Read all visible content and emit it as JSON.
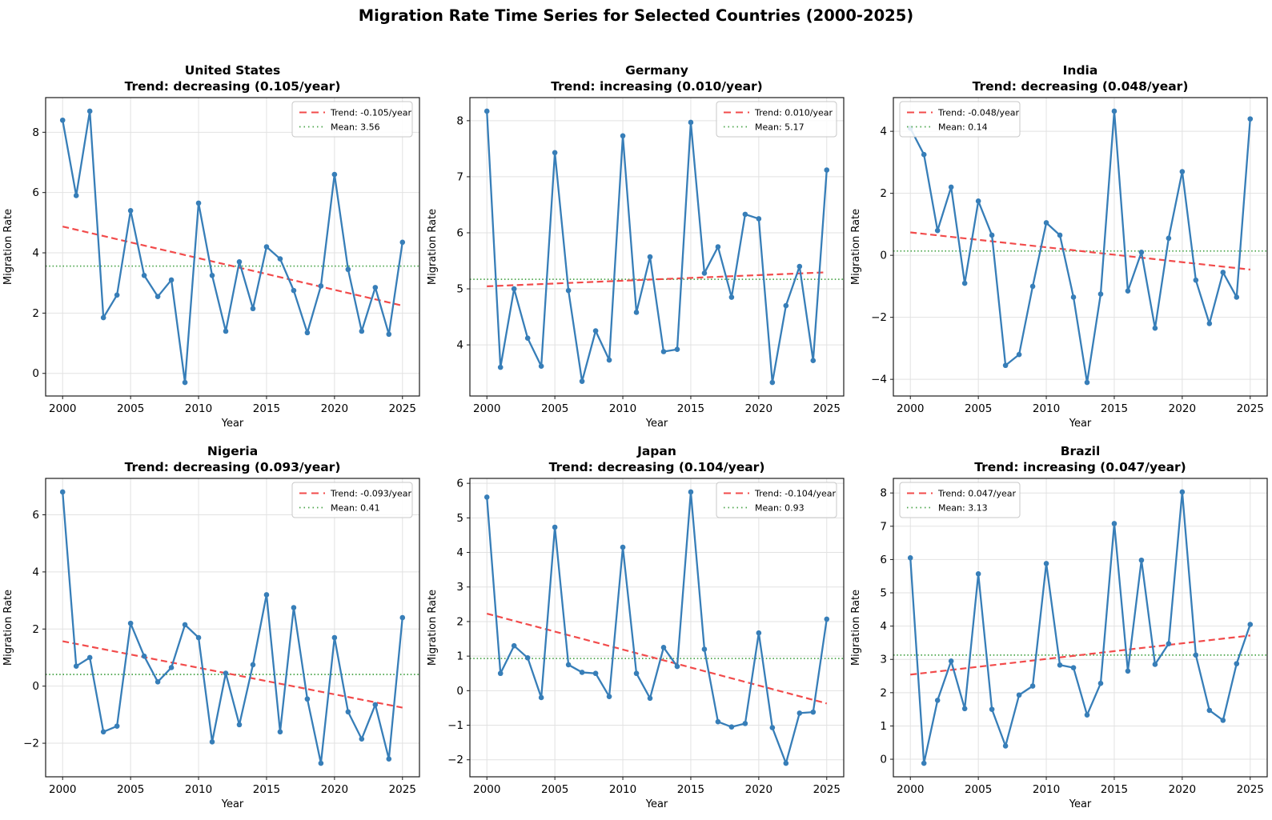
{
  "figure_title": "Migration Rate Time Series for Selected Countries (2000-2025)",
  "colors": {
    "series": "#377eb8",
    "trend": "#f24b4b",
    "mean": "#4da64d",
    "grid": "#e2e2e2",
    "spine": "#1a1a1a",
    "legend_border": "#c8c8c8"
  },
  "chart_data": [
    {
      "type": "line",
      "title": "United States",
      "subtitle": "Trend: decreasing (0.105/year)",
      "xlabel": "Year",
      "ylabel": "Migration Rate",
      "x": [
        2000,
        2001,
        2002,
        2003,
        2004,
        2005,
        2006,
        2007,
        2008,
        2009,
        2010,
        2011,
        2012,
        2013,
        2014,
        2015,
        2016,
        2017,
        2018,
        2019,
        2020,
        2021,
        2022,
        2023,
        2024,
        2025
      ],
      "y": [
        8.4,
        5.9,
        8.7,
        1.85,
        2.6,
        5.4,
        3.25,
        2.55,
        3.1,
        -0.3,
        5.65,
        3.25,
        1.4,
        3.7,
        2.15,
        4.2,
        3.8,
        2.75,
        1.35,
        2.9,
        6.6,
        3.45,
        1.4,
        2.85,
        1.3,
        4.35
      ],
      "mean": 3.56,
      "trend_slope_per_year": -0.105,
      "legend": {
        "trend_label": "Trend: -0.105/year",
        "mean_label": "Mean: 3.56",
        "position": "top-right"
      },
      "xlim": [
        1998.75,
        2026.25
      ],
      "ylim": [
        -0.75,
        9.15
      ],
      "xticks": [
        2000,
        2005,
        2010,
        2015,
        2020,
        2025
      ],
      "xtick_labels": [
        "2000",
        "2005",
        "2010",
        "2015",
        "2020",
        "2025"
      ],
      "yticks": [
        0,
        2,
        4,
        6,
        8
      ],
      "ytick_labels": [
        "0",
        "2",
        "4",
        "6",
        "8"
      ],
      "grid": true
    },
    {
      "type": "line",
      "title": "Germany",
      "subtitle": "Trend: increasing (0.010/year)",
      "xlabel": "Year",
      "ylabel": "Migration Rate",
      "x": [
        2000,
        2001,
        2002,
        2003,
        2004,
        2005,
        2006,
        2007,
        2008,
        2009,
        2010,
        2011,
        2012,
        2013,
        2014,
        2015,
        2016,
        2017,
        2018,
        2019,
        2020,
        2021,
        2022,
        2023,
        2024,
        2025
      ],
      "y": [
        8.17,
        3.6,
        5.0,
        4.12,
        3.62,
        7.43,
        4.97,
        3.35,
        4.25,
        3.73,
        7.73,
        4.58,
        5.57,
        3.88,
        3.92,
        7.97,
        5.28,
        5.75,
        4.85,
        6.33,
        6.25,
        3.33,
        4.7,
        5.4,
        3.72,
        7.12
      ],
      "mean": 5.17,
      "trend_slope_per_year": 0.01,
      "legend": {
        "trend_label": "Trend: 0.010/year",
        "mean_label": "Mean: 5.17",
        "position": "top-right"
      },
      "xlim": [
        1998.75,
        2026.25
      ],
      "ylim": [
        3.088,
        8.412
      ],
      "xticks": [
        2000,
        2005,
        2010,
        2015,
        2020,
        2025
      ],
      "xtick_labels": [
        "2000",
        "2005",
        "2010",
        "2015",
        "2020",
        "2025"
      ],
      "yticks": [
        4,
        5,
        6,
        7,
        8
      ],
      "ytick_labels": [
        "4",
        "5",
        "6",
        "7",
        "8"
      ],
      "grid": true
    },
    {
      "type": "line",
      "title": "India",
      "subtitle": "Trend: decreasing (0.048/year)",
      "xlabel": "Year",
      "ylabel": "Migration Rate",
      "x": [
        2000,
        2001,
        2002,
        2003,
        2004,
        2005,
        2006,
        2007,
        2008,
        2009,
        2010,
        2011,
        2012,
        2013,
        2014,
        2015,
        2016,
        2017,
        2018,
        2019,
        2020,
        2021,
        2022,
        2023,
        2024,
        2025
      ],
      "y": [
        4.1,
        3.25,
        0.8,
        2.2,
        -0.9,
        1.75,
        0.65,
        -3.55,
        -3.2,
        -1.0,
        1.05,
        0.65,
        -1.35,
        -4.1,
        -1.25,
        4.65,
        -1.15,
        0.1,
        -2.35,
        0.55,
        2.7,
        -0.8,
        -2.2,
        -0.55,
        -1.35,
        4.4
      ],
      "mean": 0.14,
      "trend_slope_per_year": -0.048,
      "legend": {
        "trend_label": "Trend: -0.048/year",
        "mean_label": "Mean: 0.14",
        "position": "top-left"
      },
      "xlim": [
        1998.75,
        2026.25
      ],
      "ylim": [
        -4.5375,
        5.0875
      ],
      "xticks": [
        2000,
        2005,
        2010,
        2015,
        2020,
        2025
      ],
      "xtick_labels": [
        "2000",
        "2005",
        "2010",
        "2015",
        "2020",
        "2025"
      ],
      "yticks": [
        -4,
        -2,
        0,
        2,
        4
      ],
      "ytick_labels": [
        "−4",
        "−2",
        "0",
        "2",
        "4"
      ],
      "grid": true
    },
    {
      "type": "line",
      "title": "Nigeria",
      "subtitle": "Trend: decreasing (0.093/year)",
      "xlabel": "Year",
      "ylabel": "Migration Rate",
      "x": [
        2000,
        2001,
        2002,
        2003,
        2004,
        2005,
        2006,
        2007,
        2008,
        2009,
        2010,
        2011,
        2012,
        2013,
        2014,
        2015,
        2016,
        2017,
        2018,
        2019,
        2020,
        2021,
        2022,
        2023,
        2024,
        2025
      ],
      "y": [
        6.8,
        0.7,
        1.0,
        -1.6,
        -1.4,
        2.2,
        1.05,
        0.15,
        0.65,
        2.15,
        1.7,
        -1.95,
        0.45,
        -1.35,
        0.75,
        3.2,
        -1.6,
        2.75,
        -0.45,
        -2.7,
        1.7,
        -0.9,
        -1.85,
        -0.65,
        -2.55,
        2.4
      ],
      "mean": 0.41,
      "trend_slope_per_year": -0.093,
      "legend": {
        "trend_label": "Trend: -0.093/year",
        "mean_label": "Mean: 0.41",
        "position": "top-right"
      },
      "xlim": [
        1998.75,
        2026.25
      ],
      "ylim": [
        -3.175,
        7.275
      ],
      "xticks": [
        2000,
        2005,
        2010,
        2015,
        2020,
        2025
      ],
      "xtick_labels": [
        "2000",
        "2005",
        "2010",
        "2015",
        "2020",
        "2025"
      ],
      "yticks": [
        -2,
        0,
        2,
        4,
        6
      ],
      "ytick_labels": [
        "−2",
        "0",
        "2",
        "4",
        "6"
      ],
      "grid": true
    },
    {
      "type": "line",
      "title": "Japan",
      "subtitle": "Trend: decreasing (0.104/year)",
      "xlabel": "Year",
      "ylabel": "Migration Rate",
      "x": [
        2000,
        2001,
        2002,
        2003,
        2004,
        2005,
        2006,
        2007,
        2008,
        2009,
        2010,
        2011,
        2012,
        2013,
        2014,
        2015,
        2016,
        2017,
        2018,
        2019,
        2020,
        2021,
        2022,
        2023,
        2024,
        2025
      ],
      "y": [
        5.6,
        0.5,
        1.3,
        0.95,
        -0.2,
        4.73,
        0.75,
        0.53,
        0.5,
        -0.17,
        4.15,
        0.5,
        -0.22,
        1.25,
        0.7,
        5.75,
        1.2,
        -0.9,
        -1.05,
        -0.95,
        1.67,
        -1.07,
        -2.1,
        -0.65,
        -0.62,
        2.07
      ],
      "mean": 0.93,
      "trend_slope_per_year": -0.104,
      "legend": {
        "trend_label": "Trend: -0.104/year",
        "mean_label": "Mean: 0.93",
        "position": "top-right"
      },
      "xlim": [
        1998.75,
        2026.25
      ],
      "ylim": [
        -2.4925,
        6.1425
      ],
      "xticks": [
        2000,
        2005,
        2010,
        2015,
        2020,
        2025
      ],
      "xtick_labels": [
        "2000",
        "2005",
        "2010",
        "2015",
        "2020",
        "2025"
      ],
      "yticks": [
        -2,
        -1,
        0,
        1,
        2,
        3,
        4,
        5,
        6
      ],
      "ytick_labels": [
        "−2",
        "−1",
        "0",
        "1",
        "2",
        "3",
        "4",
        "5",
        "6"
      ],
      "grid": true
    },
    {
      "type": "line",
      "title": "Brazil",
      "subtitle": "Trend: increasing (0.047/year)",
      "xlabel": "Year",
      "ylabel": "Migration Rate",
      "x": [
        2000,
        2001,
        2002,
        2003,
        2004,
        2005,
        2006,
        2007,
        2008,
        2009,
        2010,
        2011,
        2012,
        2013,
        2014,
        2015,
        2016,
        2017,
        2018,
        2019,
        2020,
        2021,
        2022,
        2023,
        2024,
        2025
      ],
      "y": [
        6.05,
        -0.12,
        1.77,
        2.95,
        1.52,
        5.57,
        1.5,
        0.4,
        1.93,
        2.2,
        5.88,
        2.83,
        2.75,
        1.33,
        2.28,
        7.08,
        2.65,
        5.98,
        2.85,
        3.47,
        8.03,
        3.13,
        1.47,
        1.17,
        2.87,
        4.05
      ],
      "mean": 3.13,
      "trend_slope_per_year": 0.047,
      "legend": {
        "trend_label": "Trend: 0.047/year",
        "mean_label": "Mean: 3.13",
        "position": "top-left"
      },
      "xlim": [
        1998.75,
        2026.25
      ],
      "ylim": [
        -0.5275,
        8.4375
      ],
      "xticks": [
        2000,
        2005,
        2010,
        2015,
        2020,
        2025
      ],
      "xtick_labels": [
        "2000",
        "2005",
        "2010",
        "2015",
        "2020",
        "2025"
      ],
      "yticks": [
        0,
        1,
        2,
        3,
        4,
        5,
        6,
        7,
        8
      ],
      "ytick_labels": [
        "0",
        "1",
        "2",
        "3",
        "4",
        "5",
        "6",
        "7",
        "8"
      ],
      "grid": true
    }
  ]
}
